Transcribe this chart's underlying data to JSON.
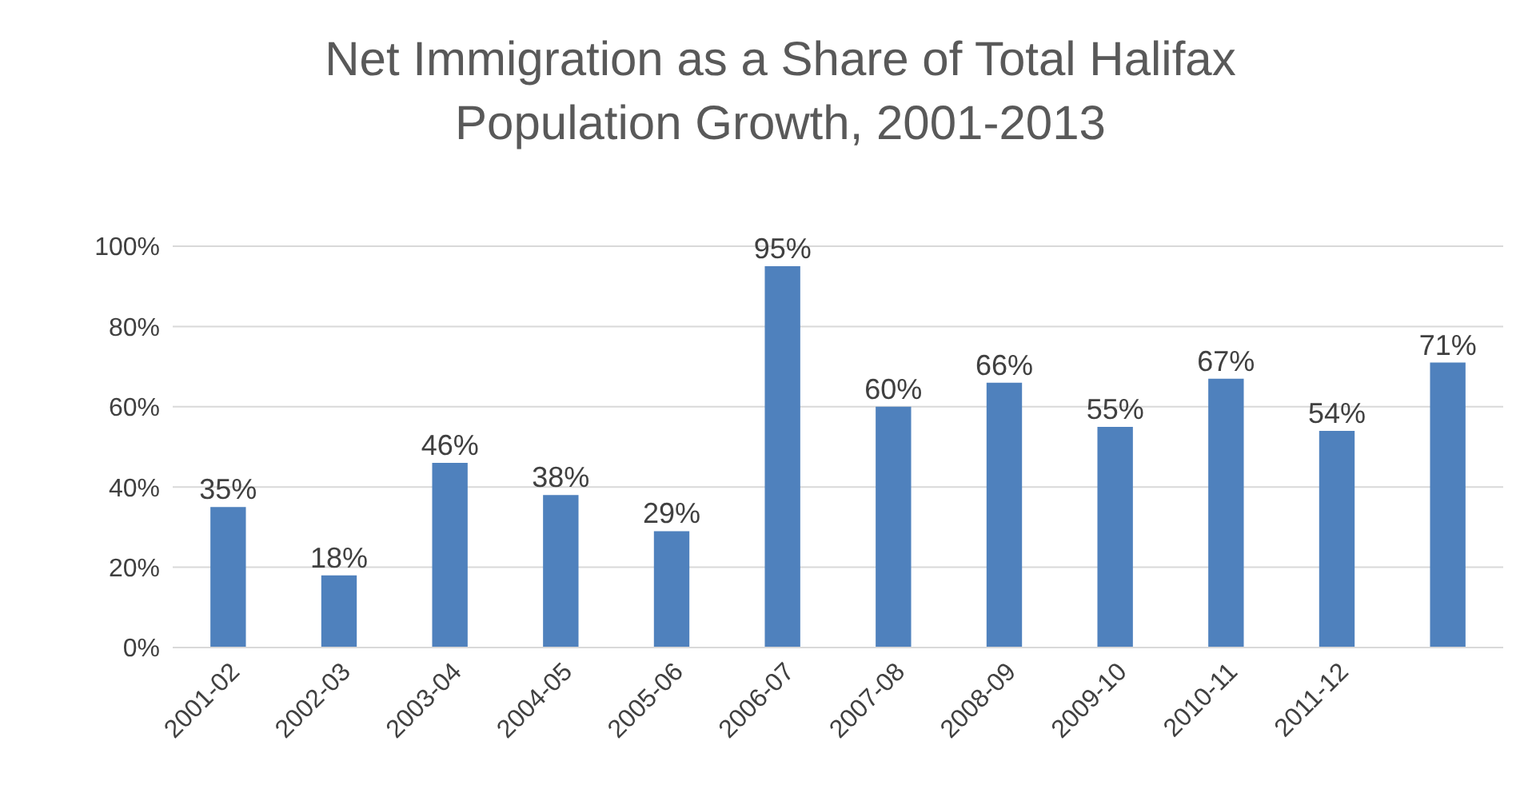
{
  "chart_data": {
    "type": "bar",
    "title": "Net Immigration as a Share of Total Halifax Population Growth, 2001-2013",
    "categories": [
      "2001-02",
      "2002-03",
      "2003-04",
      "2004-05",
      "2005-06",
      "2006-07",
      "2007-08",
      "2008-09",
      "2009-10",
      "2010-11",
      "2011-12",
      null
    ],
    "values": [
      35,
      18,
      46,
      38,
      29,
      95,
      60,
      66,
      55,
      67,
      54,
      71
    ],
    "value_labels": [
      "35%",
      "18%",
      "46%",
      "38%",
      "29%",
      "95%",
      "60%",
      "66%",
      "55%",
      "67%",
      "54%",
      "71%"
    ],
    "color": "#4f81bd",
    "ylim": [
      0,
      100
    ],
    "yticks": [
      {
        "value": 0,
        "label": "0%"
      },
      {
        "value": 20,
        "label": "20%"
      },
      {
        "value": 40,
        "label": "40%"
      },
      {
        "value": 60,
        "label": "60%"
      },
      {
        "value": 80,
        "label": "80%"
      },
      {
        "value": 100,
        "label": "100%"
      }
    ],
    "grid": "y",
    "legend": false
  }
}
